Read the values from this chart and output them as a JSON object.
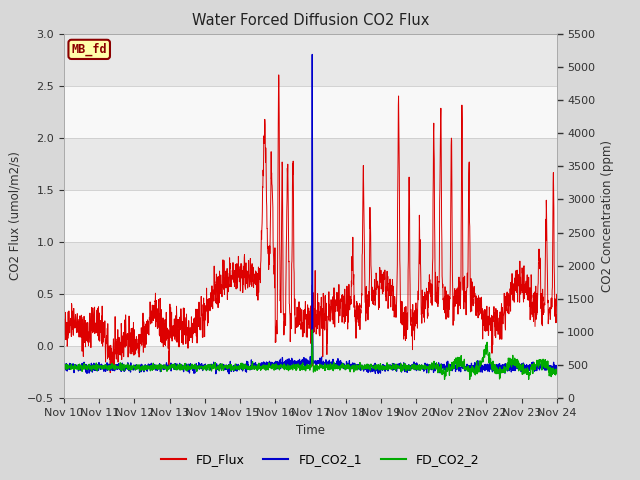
{
  "title": "Water Forced Diffusion CO2 Flux",
  "xlabel": "Time",
  "ylabel_left": "CO2 Flux (umol/m2/s)",
  "ylabel_right": "CO2 Concentration (ppm)",
  "ylim_left": [
    -0.5,
    3.0
  ],
  "ylim_right": [
    0,
    5500
  ],
  "xtick_labels": [
    "Nov 10",
    "Nov 11",
    "Nov 12",
    "Nov 13",
    "Nov 14",
    "Nov 15",
    "Nov 16",
    "Nov 17",
    "Nov 18",
    "Nov 19",
    "Nov 20",
    "Nov 21",
    "Nov 22",
    "Nov 23",
    "Nov 24"
  ],
  "label_box": "MB_fd",
  "label_box_color": "#ffffaa",
  "label_box_border": "#8B0000",
  "label_text_color": "#8B0000",
  "bg_color": "#d8d8d8",
  "plot_bg_color": "#ffffff",
  "band_color_1": "#e8e8e8",
  "band_color_2": "#f8f8f8",
  "grid_color": "#cccccc",
  "line_colors": {
    "FD_Flux": "#dd0000",
    "FD_CO2_1": "#0000cc",
    "FD_CO2_2": "#00aa00"
  },
  "legend_labels": [
    "FD_Flux",
    "FD_CO2_1",
    "FD_CO2_2"
  ],
  "seed": 42,
  "n_points": 2016
}
